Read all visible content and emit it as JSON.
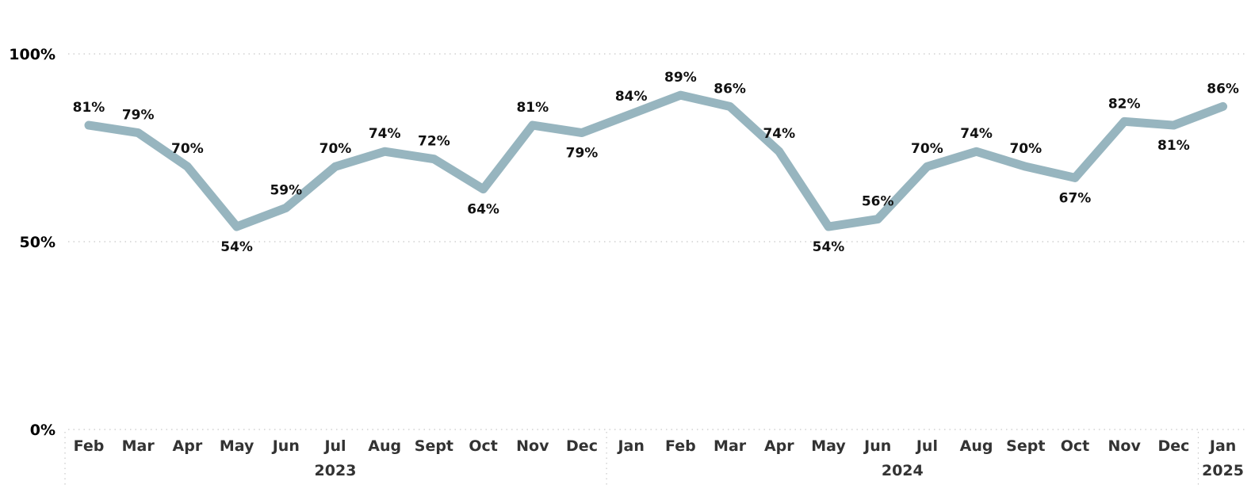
{
  "chart_data": {
    "type": "line",
    "ylim": [
      0,
      100
    ],
    "yticks": [
      "0%",
      "50%",
      "100%"
    ],
    "ytick_values": [
      0,
      50,
      100
    ],
    "grid": true,
    "line_color": "#97b5bf",
    "categories": [
      "Feb",
      "Mar",
      "Apr",
      "May",
      "Jun",
      "Jul",
      "Aug",
      "Sept",
      "Oct",
      "Nov",
      "Dec",
      "Jan",
      "Feb",
      "Mar",
      "Apr",
      "May",
      "Jun",
      "Jul",
      "Aug",
      "Sept",
      "Oct",
      "Nov",
      "Dec",
      "Jan"
    ],
    "years": [
      {
        "label": "2023",
        "start": 0,
        "end": 10
      },
      {
        "label": "2024",
        "start": 11,
        "end": 22
      },
      {
        "label": "2025",
        "start": 23,
        "end": 23
      }
    ],
    "values": [
      81,
      79,
      70,
      54,
      59,
      70,
      74,
      72,
      64,
      81,
      79,
      84,
      89,
      86,
      74,
      54,
      56,
      70,
      74,
      70,
      67,
      82,
      81,
      86
    ],
    "data_labels": [
      "81%",
      "79%",
      "70%",
      "54%",
      "59%",
      "70%",
      "74%",
      "72%",
      "64%",
      "81%",
      "79%",
      "84%",
      "89%",
      "86%",
      "74%",
      "54%",
      "56%",
      "70%",
      "74%",
      "70%",
      "67%",
      "82%",
      "81%",
      "86%"
    ],
    "label_positions": [
      "above",
      "above",
      "above",
      "below",
      "above",
      "above",
      "above",
      "above",
      "below",
      "above",
      "below",
      "above",
      "above",
      "above",
      "above",
      "below",
      "above",
      "above",
      "above",
      "above",
      "below",
      "above",
      "below",
      "above"
    ]
  }
}
